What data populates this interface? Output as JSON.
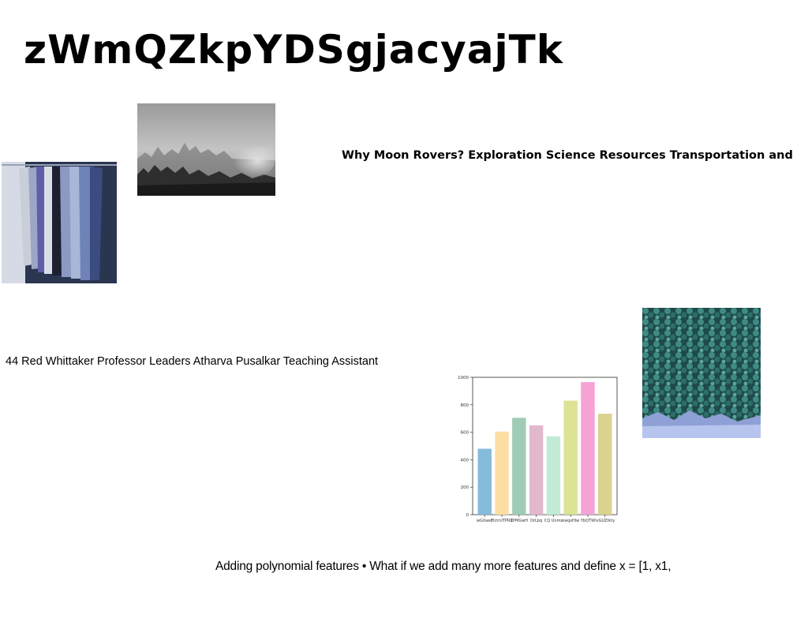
{
  "slide": {
    "title": "zWmQZkpYDSgjacyajTk",
    "heading": "Why Moon Rovers? Exploration Science Resources Transportation and",
    "credits": "44 Red Whittaker Professor Leaders Atharva Pusalkar Teaching Assistant",
    "bullet": "Adding polynomial features • What if we add many more features and define x = [1, x1,"
  },
  "images": {
    "shirts": {
      "icon": "shirts-on-rack-photo"
    },
    "fog": {
      "icon": "foggy-forest-photo"
    },
    "trees": {
      "icon": "aerial-forest-photo"
    }
  },
  "chart_data": {
    "type": "bar",
    "categories": [
      "wGXaed",
      "YlctrUTPRZ",
      "XPMGwH",
      "DrLbq",
      "CQ Unmz",
      "xwqsHlw",
      "YbQTW",
      "lvGUZtkty"
    ],
    "values": [
      480,
      605,
      705,
      650,
      570,
      830,
      965,
      735
    ],
    "colors": [
      "#85bcdb",
      "#fbdfa3",
      "#a0cbb5",
      "#e2b8cd",
      "#c2ebd7",
      "#dde394",
      "#f6a2d5",
      "#d9d38d"
    ],
    "yticks": [
      0,
      200,
      400,
      600,
      800,
      1000
    ],
    "ylim": [
      0,
      1000
    ],
    "title": "",
    "xlabel": "",
    "ylabel": ""
  }
}
